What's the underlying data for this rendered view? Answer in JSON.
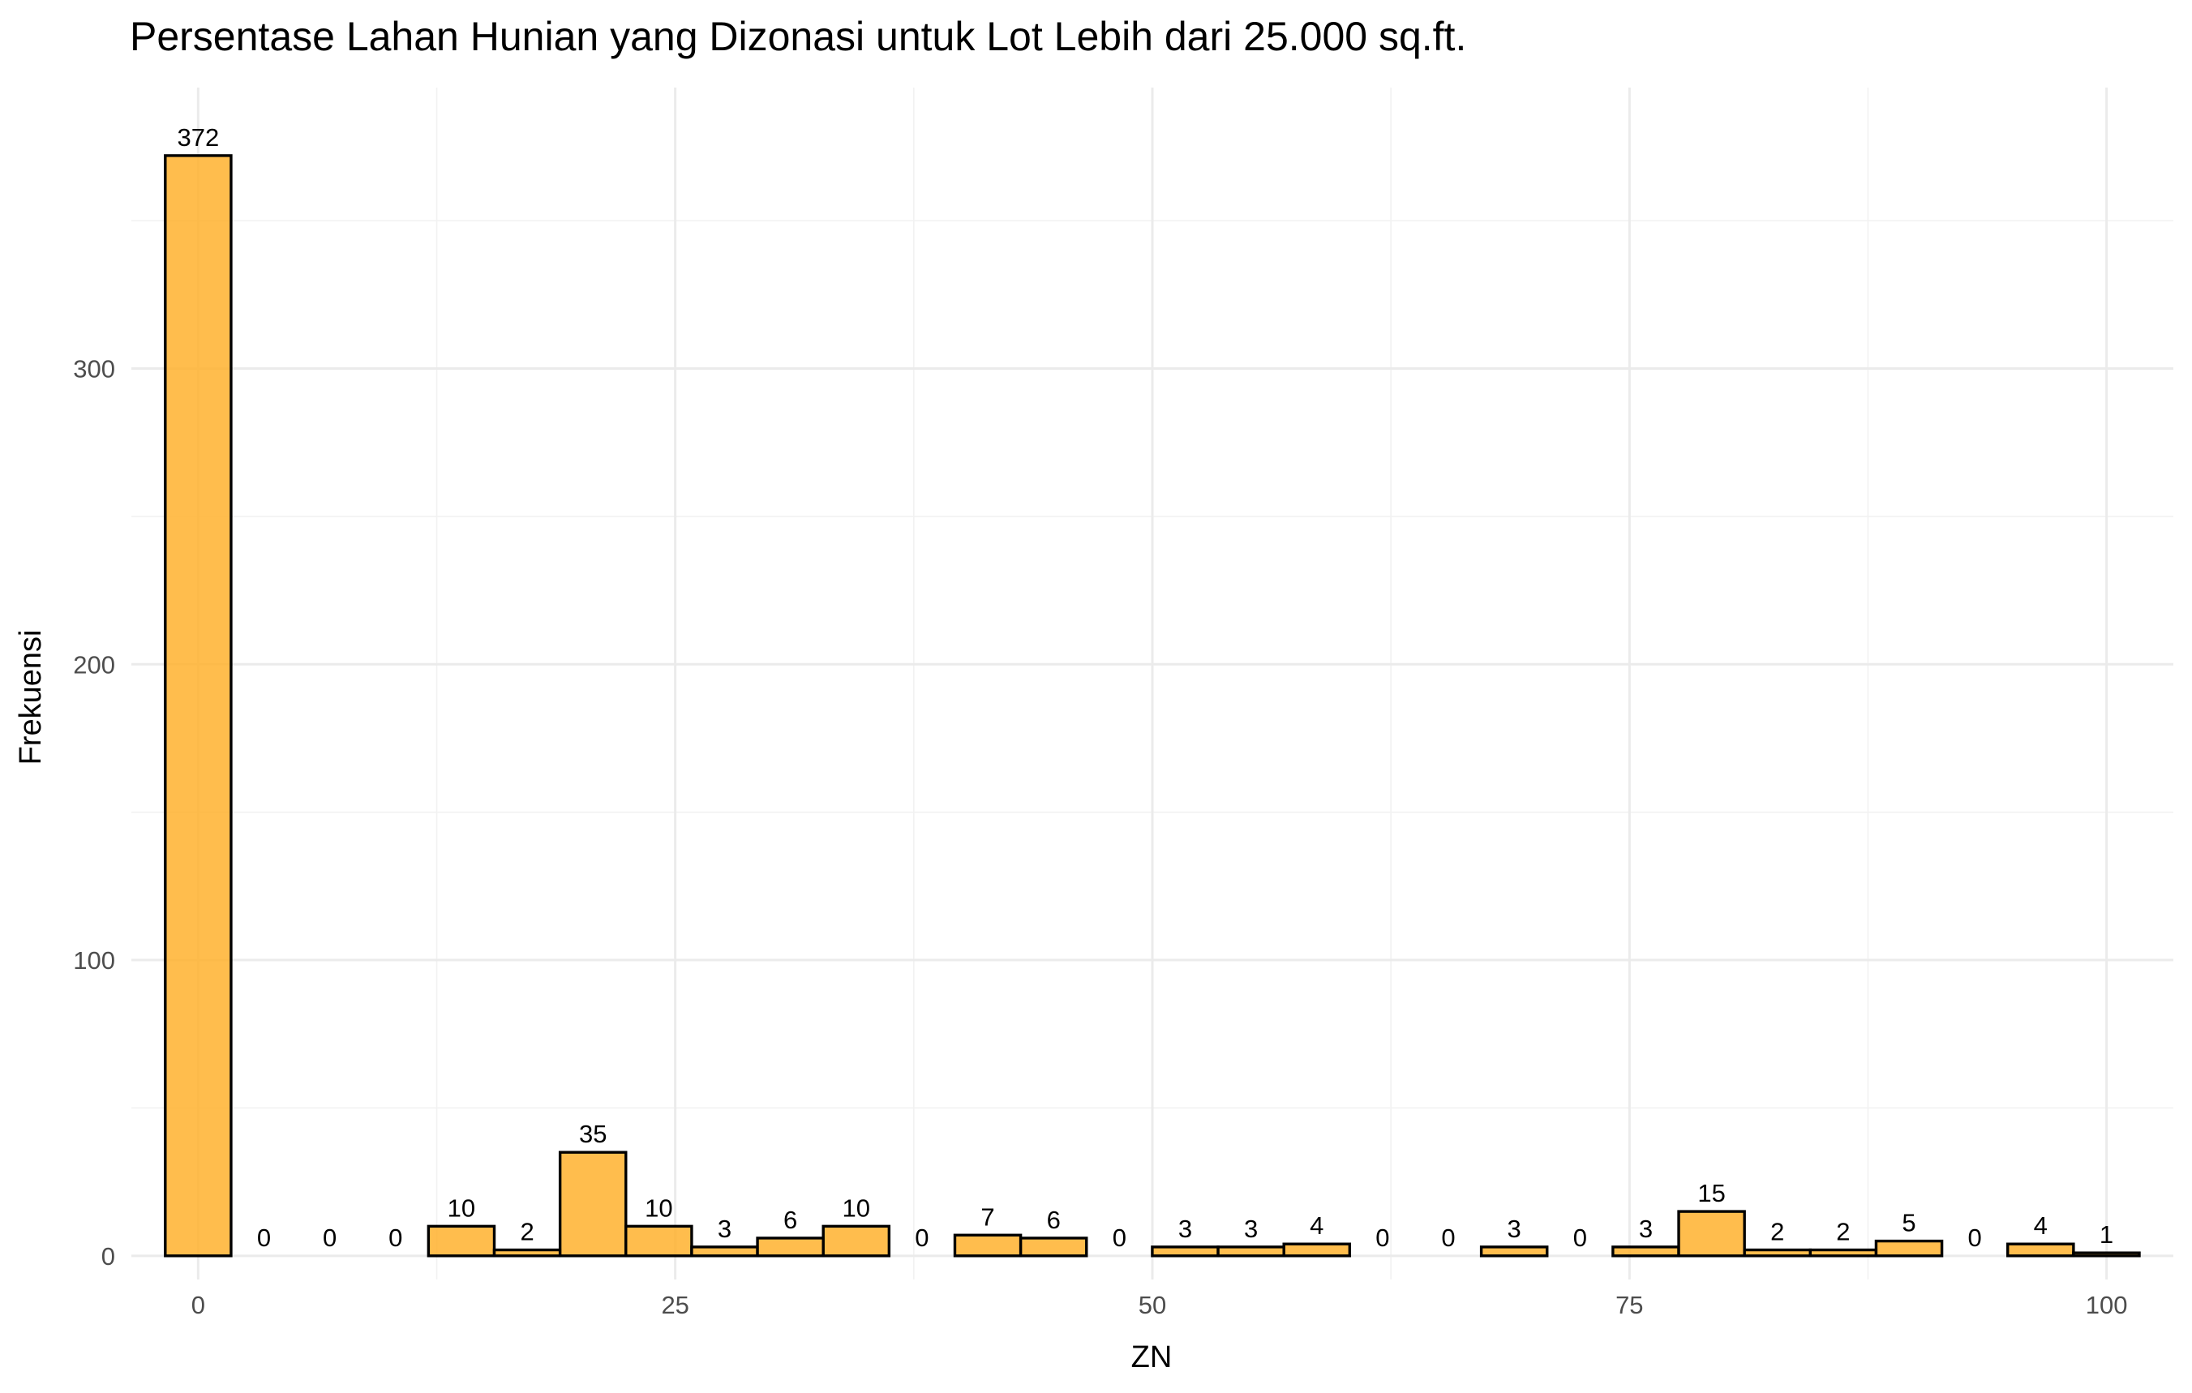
{
  "chart_data": {
    "type": "bar",
    "title": "Persentase Lahan Hunian yang Dizonasi untuk Lot Lebih dari 25.000 sq.ft.",
    "xlabel": "ZN",
    "ylabel": "Frekuensi",
    "xlim": [
      -3.5,
      103.5
    ],
    "ylim": [
      -8,
      395
    ],
    "x_ticks": [
      0,
      25,
      50,
      75,
      100
    ],
    "y_ticks": [
      0,
      100,
      200,
      300
    ],
    "bin_width": 3.448,
    "bin_start": -1.724,
    "values": [
      372,
      0,
      0,
      0,
      10,
      2,
      35,
      10,
      3,
      6,
      10,
      0,
      7,
      6,
      0,
      3,
      3,
      4,
      0,
      0,
      3,
      0,
      3,
      15,
      2,
      2,
      5,
      0,
      4,
      1
    ],
    "bar_color": "#FFB22E",
    "grid": true,
    "legend": "none"
  }
}
